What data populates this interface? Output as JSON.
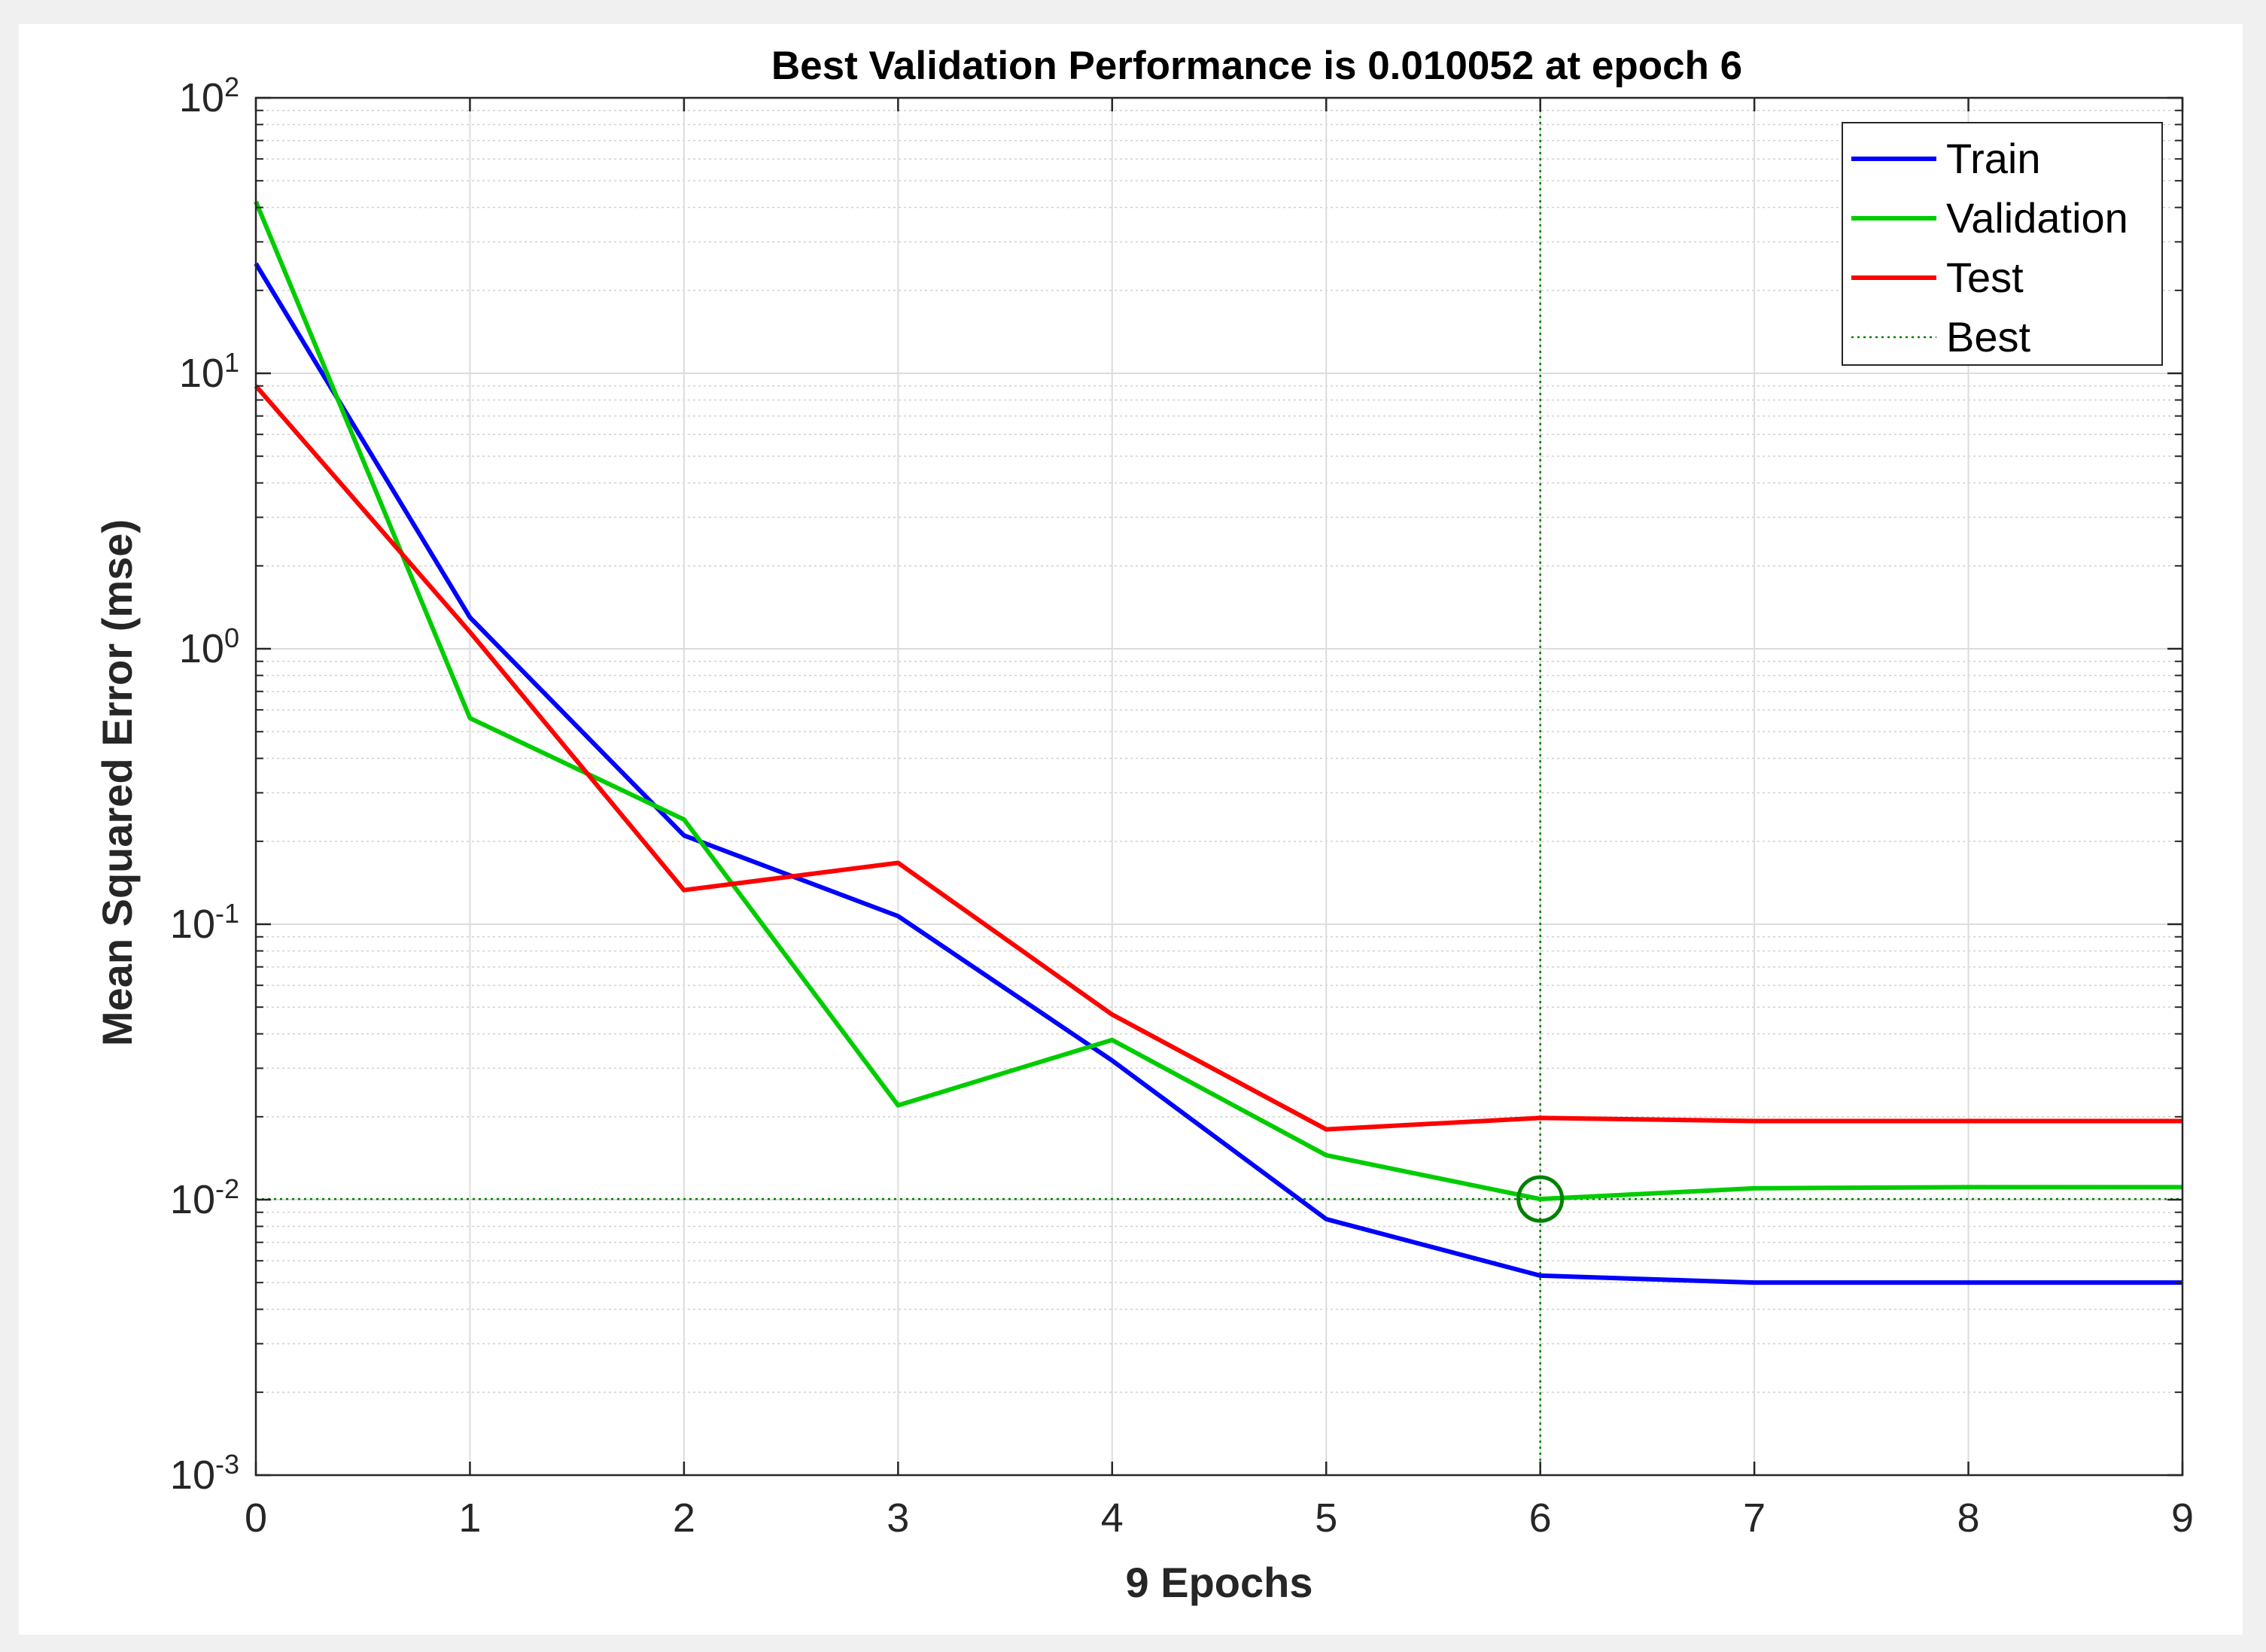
{
  "chart_data": {
    "type": "line",
    "title": "Best Validation Performance is 0.010052 at epoch 6",
    "xlabel": "9 Epochs",
    "ylabel": "Mean Squared Error  (mse)",
    "yscale": "log",
    "xlim": [
      0,
      9
    ],
    "ylim": [
      0.001,
      100
    ],
    "xticks": [
      0,
      1,
      2,
      3,
      4,
      5,
      6,
      7,
      8,
      9
    ],
    "yticks": [
      {
        "base": "10",
        "exp": "-3",
        "value": 0.001
      },
      {
        "base": "10",
        "exp": "-2",
        "value": 0.01
      },
      {
        "base": "10",
        "exp": "-1",
        "value": 0.1
      },
      {
        "base": "10",
        "exp": "0",
        "value": 1
      },
      {
        "base": "10",
        "exp": "1",
        "value": 10
      },
      {
        "base": "10",
        "exp": "2",
        "value": 100
      }
    ],
    "grid": true,
    "legend_position": "top-right",
    "x": [
      0,
      1,
      2,
      3,
      4,
      5,
      6,
      7,
      8,
      9
    ],
    "series": [
      {
        "name": "Train",
        "color": "#0000ff",
        "values": [
          25,
          1.3,
          0.21,
          0.107,
          0.032,
          0.0085,
          0.0053,
          0.005,
          0.005,
          0.005
        ]
      },
      {
        "name": "Validation",
        "color": "#00cc00",
        "values": [
          42,
          0.56,
          0.24,
          0.022,
          0.038,
          0.0145,
          0.010052,
          0.011,
          0.0111,
          0.0111
        ]
      },
      {
        "name": "Test",
        "color": "#ff0000",
        "values": [
          9,
          1.15,
          0.133,
          0.167,
          0.047,
          0.018,
          0.0198,
          0.0193,
          0.0193,
          0.0193
        ]
      }
    ],
    "best": {
      "name": "Best",
      "epoch": 6,
      "value": 0.010052,
      "color": "#008000"
    }
  }
}
